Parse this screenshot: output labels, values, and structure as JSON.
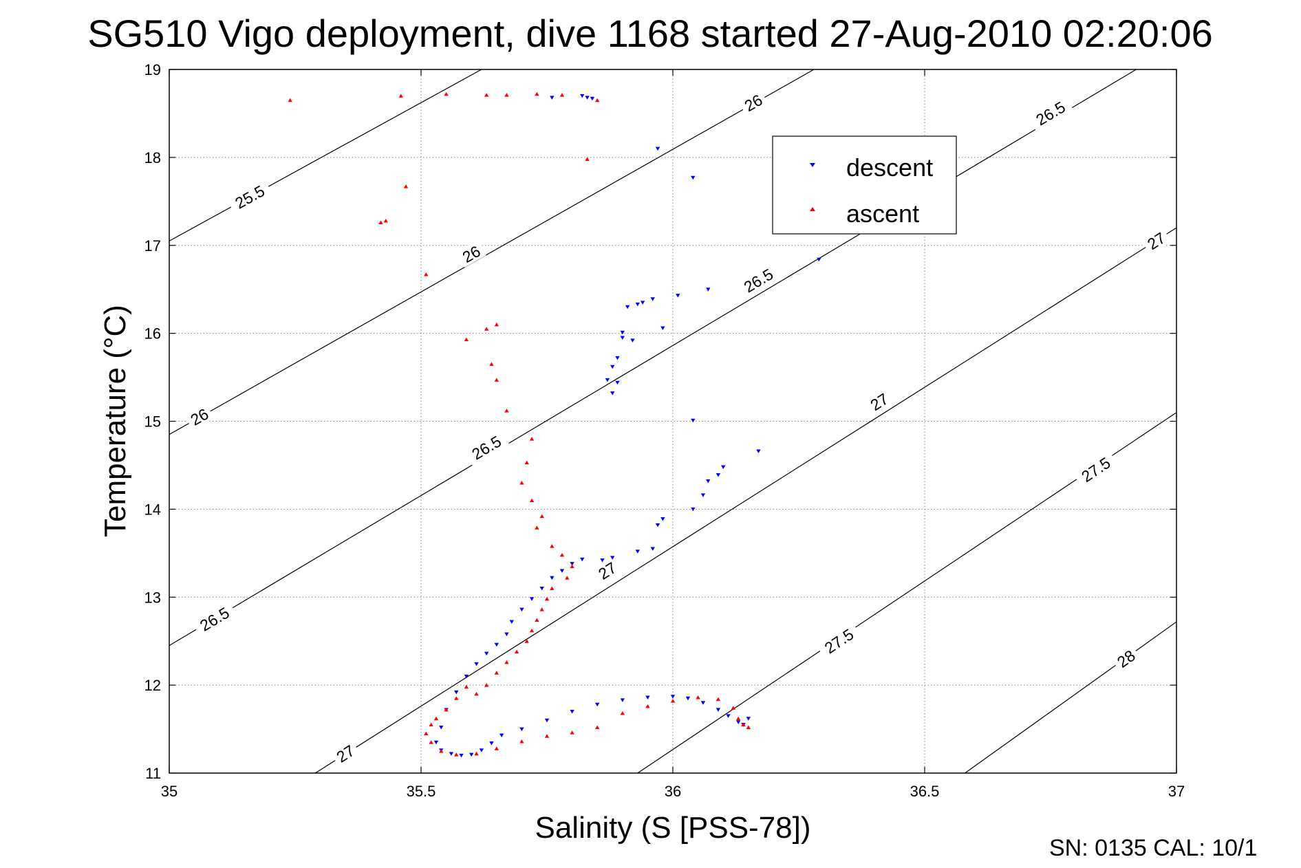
{
  "chart_data": {
    "type": "scatter",
    "title": "SG510 Vigo deployment, dive 1168 started 27-Aug-2010 02:20:06",
    "xlabel": "Salinity (S [PSS-78])",
    "ylabel": "Temperature (°C)",
    "xlim": [
      35,
      37
    ],
    "ylim": [
      11,
      19
    ],
    "xticks": [
      35,
      35.5,
      36,
      36.5,
      37
    ],
    "xtick_labels": [
      "35",
      "35.5",
      "36",
      "36.5",
      "37"
    ],
    "yticks": [
      11,
      12,
      13,
      14,
      15,
      16,
      17,
      18,
      19
    ],
    "ytick_labels": [
      "11",
      "12",
      "13",
      "14",
      "15",
      "16",
      "17",
      "18",
      "19"
    ],
    "grid": true,
    "legend": {
      "placement": "top-right",
      "entries": [
        "descent",
        "ascent"
      ]
    },
    "footer": "SN: 0135  CAL: 10/1",
    "contours": [
      {
        "label": "25.5",
        "points": [
          [
            35.0,
            17.05
          ],
          [
            35.62,
            19.0
          ]
        ],
        "label_at": [
          [
            35.16,
            17.55
          ]
        ]
      },
      {
        "label": "26",
        "points": [
          [
            35.0,
            14.85
          ],
          [
            36.28,
            19.0
          ]
        ],
        "label_at": [
          [
            35.06,
            15.05
          ],
          [
            35.6,
            16.9
          ],
          [
            36.16,
            18.62
          ]
        ]
      },
      {
        "label": "26.5",
        "points": [
          [
            35.0,
            12.45
          ],
          [
            36.92,
            19.0
          ]
        ],
        "label_at": [
          [
            35.09,
            12.75
          ],
          [
            35.63,
            14.7
          ],
          [
            36.17,
            16.6
          ],
          [
            36.75,
            18.5
          ]
        ]
      },
      {
        "label": "27",
        "points": [
          [
            35.29,
            11.0
          ],
          [
            37.0,
            17.2
          ]
        ],
        "label_at": [
          [
            35.35,
            11.22
          ],
          [
            35.87,
            13.3
          ],
          [
            36.41,
            15.22
          ],
          [
            36.96,
            17.05
          ]
        ]
      },
      {
        "label": "27.5",
        "points": [
          [
            35.93,
            11.0
          ],
          [
            37.0,
            15.1
          ]
        ],
        "label_at": [
          [
            36.33,
            12.5
          ],
          [
            36.84,
            14.45
          ]
        ]
      },
      {
        "label": "28",
        "points": [
          [
            36.58,
            11.0
          ],
          [
            37.0,
            12.72
          ]
        ],
        "label_at": [
          [
            36.9,
            12.3
          ]
        ]
      }
    ],
    "series": [
      {
        "name": "descent",
        "marker": "triangle-down",
        "color": "#0000ff",
        "x": [
          35.76,
          35.82,
          35.83,
          35.84,
          35.97,
          36.04,
          36.29,
          36.07,
          36.01,
          35.96,
          35.94,
          35.93,
          35.98,
          35.9,
          35.92,
          35.89,
          35.88,
          35.87,
          35.89,
          35.88,
          35.9,
          35.91,
          35.96,
          36.04,
          36.17,
          36.1,
          36.09,
          36.07,
          36.06,
          36.04,
          35.98,
          35.97,
          35.93,
          35.88,
          35.86,
          35.82,
          35.8,
          35.78,
          35.76,
          35.74,
          35.72,
          35.7,
          35.68,
          35.67,
          35.65,
          35.63,
          35.61,
          35.59,
          35.57,
          35.55,
          35.54,
          35.53,
          35.54,
          35.56,
          35.58,
          35.6,
          35.62,
          35.64,
          35.66,
          35.7,
          35.75,
          35.8,
          35.85,
          35.9,
          35.95,
          36.0,
          36.03,
          36.06,
          36.09,
          36.11,
          36.13,
          36.14,
          36.15,
          36.14
        ],
        "y": [
          18.68,
          18.7,
          18.68,
          18.67,
          18.1,
          17.77,
          16.84,
          16.5,
          16.43,
          16.39,
          16.35,
          16.33,
          16.06,
          15.95,
          15.92,
          15.72,
          15.62,
          15.47,
          15.44,
          15.32,
          16.01,
          16.3,
          13.55,
          15.01,
          14.66,
          14.48,
          14.39,
          14.32,
          14.16,
          14.0,
          13.89,
          13.82,
          13.52,
          13.45,
          13.42,
          13.43,
          13.38,
          13.3,
          13.22,
          13.1,
          12.98,
          12.86,
          12.72,
          12.58,
          12.46,
          12.36,
          12.24,
          12.1,
          11.92,
          11.72,
          11.52,
          11.35,
          11.26,
          11.22,
          11.2,
          11.21,
          11.26,
          11.34,
          11.43,
          11.5,
          11.6,
          11.7,
          11.78,
          11.83,
          11.86,
          11.87,
          11.85,
          11.8,
          11.72,
          11.65,
          11.58,
          11.55,
          11.62,
          11.55
        ]
      },
      {
        "name": "ascent",
        "marker": "triangle-up",
        "color": "#ff0000",
        "x": [
          35.24,
          35.46,
          35.55,
          35.63,
          35.67,
          35.73,
          35.78,
          35.85,
          35.83,
          35.42,
          35.47,
          35.43,
          35.51,
          35.59,
          35.63,
          35.65,
          35.64,
          35.65,
          35.67,
          35.72,
          35.71,
          35.7,
          35.72,
          35.74,
          35.73,
          35.76,
          35.78,
          35.8,
          35.79,
          35.76,
          35.75,
          35.74,
          35.73,
          35.72,
          35.71,
          35.69,
          35.67,
          35.65,
          35.63,
          35.61,
          35.59,
          35.57,
          35.55,
          35.53,
          35.52,
          35.51,
          35.52,
          35.54,
          35.57,
          35.61,
          35.65,
          35.7,
          35.75,
          35.8,
          35.85,
          35.9,
          35.95,
          36.0,
          36.05,
          36.09,
          36.12,
          36.13,
          36.14,
          36.15
        ],
        "y": [
          18.65,
          18.7,
          18.72,
          18.71,
          18.71,
          18.72,
          18.71,
          18.65,
          17.98,
          17.26,
          17.67,
          17.28,
          16.67,
          15.93,
          16.05,
          16.1,
          15.65,
          15.47,
          15.12,
          14.8,
          14.53,
          14.3,
          14.1,
          13.92,
          13.79,
          13.58,
          13.48,
          13.35,
          13.22,
          13.1,
          12.98,
          12.86,
          12.74,
          12.62,
          12.5,
          12.38,
          12.26,
          12.14,
          12.0,
          11.9,
          11.98,
          11.85,
          11.72,
          11.62,
          11.55,
          11.45,
          11.35,
          11.25,
          11.21,
          11.22,
          11.28,
          11.36,
          11.42,
          11.46,
          11.52,
          11.68,
          11.76,
          11.82,
          11.86,
          11.84,
          11.74,
          11.62,
          11.55,
          11.52
        ]
      }
    ]
  }
}
